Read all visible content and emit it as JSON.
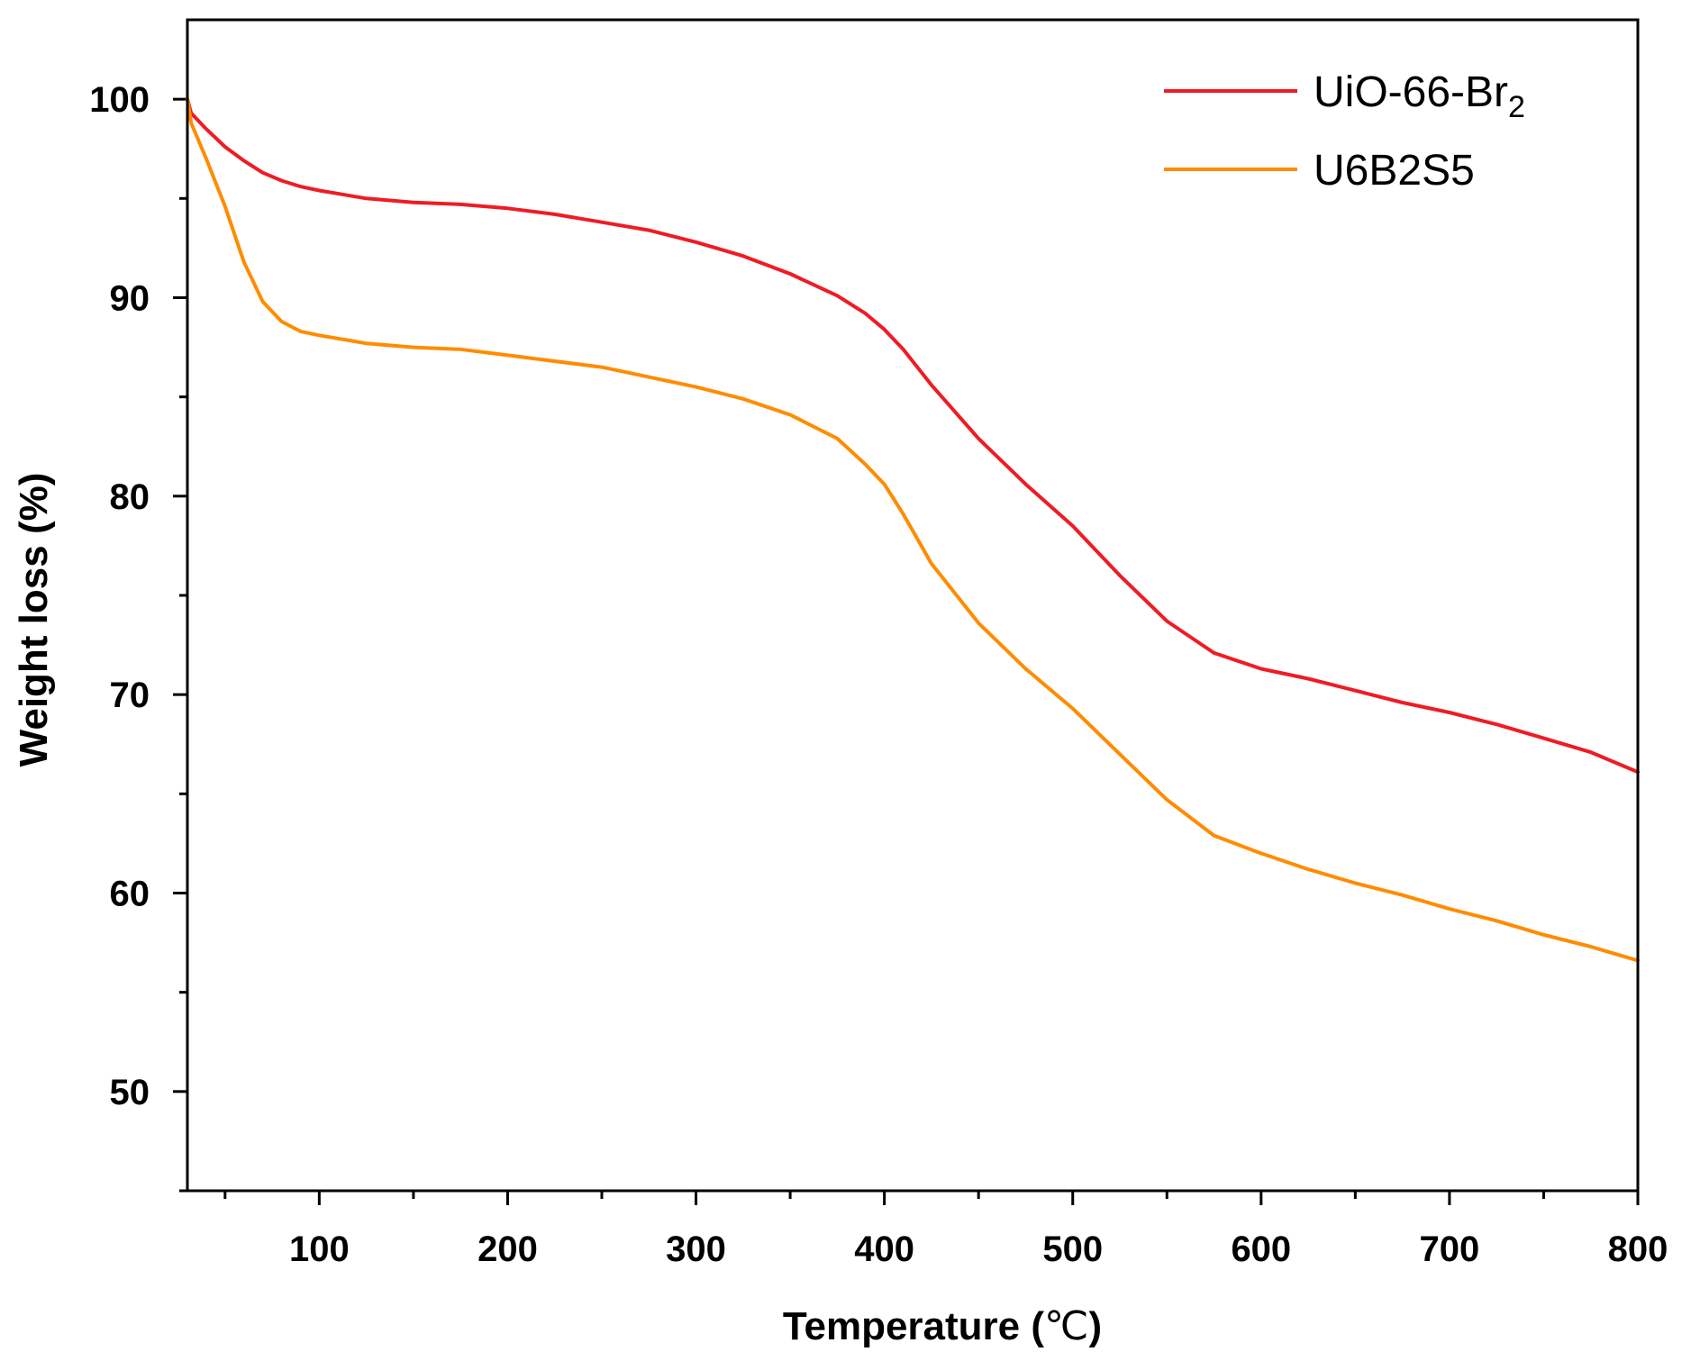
{
  "chart_data": {
    "type": "line",
    "title": "",
    "xlabel": "Temperature (",
    "xlabel_unit": "℃",
    "xlabel_close": ")",
    "ylabel": "Weight loss (%)",
    "xlim": [
      30,
      800
    ],
    "ylim": [
      45,
      104
    ],
    "xticks": [
      100,
      200,
      300,
      400,
      500,
      600,
      700,
      800
    ],
    "yticks": [
      50,
      60,
      70,
      80,
      90,
      100
    ],
    "x_minor_step": 50,
    "y_minor_step": 5,
    "legend_position": "top-right",
    "series": [
      {
        "name": "UiO-66-Br",
        "name_subscript": "2",
        "color": "#ee1c25",
        "points": [
          [
            30,
            100
          ],
          [
            32,
            99.3
          ],
          [
            40,
            98.5
          ],
          [
            50,
            97.6
          ],
          [
            60,
            96.9
          ],
          [
            70,
            96.3
          ],
          [
            80,
            95.9
          ],
          [
            90,
            95.6
          ],
          [
            100,
            95.4
          ],
          [
            125,
            95.0
          ],
          [
            150,
            94.8
          ],
          [
            175,
            94.7
          ],
          [
            200,
            94.5
          ],
          [
            225,
            94.2
          ],
          [
            250,
            93.8
          ],
          [
            275,
            93.4
          ],
          [
            300,
            92.8
          ],
          [
            325,
            92.1
          ],
          [
            350,
            91.2
          ],
          [
            375,
            90.1
          ],
          [
            390,
            89.2
          ],
          [
            400,
            88.4
          ],
          [
            410,
            87.4
          ],
          [
            425,
            85.6
          ],
          [
            450,
            82.9
          ],
          [
            475,
            80.6
          ],
          [
            500,
            78.5
          ],
          [
            525,
            76.0
          ],
          [
            550,
            73.7
          ],
          [
            575,
            72.1
          ],
          [
            600,
            71.3
          ],
          [
            625,
            70.8
          ],
          [
            650,
            70.2
          ],
          [
            675,
            69.6
          ],
          [
            700,
            69.1
          ],
          [
            725,
            68.5
          ],
          [
            750,
            67.8
          ],
          [
            775,
            67.1
          ],
          [
            800,
            66.1
          ]
        ]
      },
      {
        "name": "U6B2S5",
        "name_subscript": "",
        "color": "#ff8c00",
        "points": [
          [
            30,
            100
          ],
          [
            32,
            98.8
          ],
          [
            40,
            97.0
          ],
          [
            50,
            94.6
          ],
          [
            60,
            91.8
          ],
          [
            70,
            89.8
          ],
          [
            80,
            88.8
          ],
          [
            90,
            88.3
          ],
          [
            100,
            88.1
          ],
          [
            125,
            87.7
          ],
          [
            150,
            87.5
          ],
          [
            175,
            87.4
          ],
          [
            200,
            87.1
          ],
          [
            225,
            86.8
          ],
          [
            250,
            86.5
          ],
          [
            275,
            86.0
          ],
          [
            300,
            85.5
          ],
          [
            325,
            84.9
          ],
          [
            350,
            84.1
          ],
          [
            375,
            82.9
          ],
          [
            390,
            81.6
          ],
          [
            400,
            80.6
          ],
          [
            410,
            79.1
          ],
          [
            425,
            76.6
          ],
          [
            450,
            73.6
          ],
          [
            475,
            71.3
          ],
          [
            500,
            69.3
          ],
          [
            525,
            67.0
          ],
          [
            550,
            64.7
          ],
          [
            575,
            62.9
          ],
          [
            600,
            62.0
          ],
          [
            625,
            61.2
          ],
          [
            650,
            60.5
          ],
          [
            675,
            59.9
          ],
          [
            700,
            59.2
          ],
          [
            725,
            58.6
          ],
          [
            750,
            57.9
          ],
          [
            775,
            57.3
          ],
          [
            800,
            56.6
          ]
        ]
      }
    ]
  }
}
